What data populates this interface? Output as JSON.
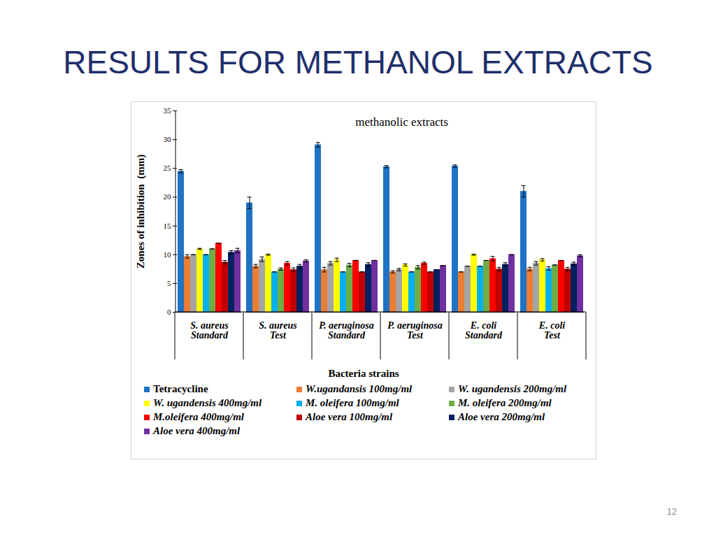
{
  "slide": {
    "title": "RESULTS  FOR METHANOL EXTRACTS",
    "page": "12"
  },
  "chart_data": {
    "type": "bar",
    "title": "methanolic extracts",
    "x_label": "Bacteria strains",
    "y_label": "Zones of inhibition  (mm)",
    "categories": [
      "S. aureus\nStandard",
      "S. aureus\nTest",
      "P. aeruginosa\nStandard",
      "P. aeruginosa\nTest",
      "E. coli\nStandard",
      "E. coli\nTest"
    ],
    "ylim": [
      0,
      35
    ],
    "yticks": [
      0,
      5,
      10,
      15,
      20,
      25,
      30,
      35
    ],
    "grid": false,
    "legend": "bottom",
    "series": [
      {
        "name": "Tetracycline",
        "color": "#1f72c4",
        "values": [
          24.5,
          19.0,
          29.1,
          25.3,
          25.4,
          21.0
        ],
        "errors": [
          0.3,
          1.0,
          0.4,
          0.2,
          0.2,
          1.0
        ]
      },
      {
        "name": "W.ugandansis 100mg/ml",
        "color": "#ed7d31",
        "values": [
          9.7,
          8.0,
          7.4,
          7.0,
          7.0,
          7.5
        ],
        "errors": [
          0.3,
          0.3,
          0.4,
          0.2,
          0.0,
          0.3
        ]
      },
      {
        "name": "W. ugandensis 200mg/ml",
        "color": "#a5a5a5",
        "values": [
          10.0,
          9.2,
          8.5,
          7.4,
          8.0,
          8.5
        ],
        "errors": [
          0.0,
          0.4,
          0.3,
          0.2,
          0.0,
          0.3
        ]
      },
      {
        "name": "W. ugandensis 400mg/ml",
        "color": "#ffff00",
        "values": [
          11.0,
          10.0,
          9.1,
          8.2,
          10.0,
          9.1
        ],
        "errors": [
          0.1,
          0.1,
          0.3,
          0.2,
          0.1,
          0.2
        ]
      },
      {
        "name": "M. oleifera 100mg/ml",
        "color": "#00b0f0",
        "values": [
          10.0,
          7.0,
          7.0,
          7.0,
          8.0,
          7.6
        ],
        "errors": [
          0.0,
          0.0,
          0.0,
          0.0,
          0.0,
          0.3
        ]
      },
      {
        "name": "M. oleifera 200mg/ml",
        "color": "#70ad47",
        "values": [
          11.0,
          7.5,
          8.2,
          7.8,
          9.0,
          8.2
        ],
        "errors": [
          0.0,
          0.2,
          0.3,
          0.3,
          0.0,
          0.0
        ]
      },
      {
        "name": "M.oleifera 400mg/ml",
        "color": "#ff0000",
        "values": [
          12.0,
          8.5,
          9.0,
          8.5,
          9.3,
          9.0
        ],
        "errors": [
          0.0,
          0.3,
          0.0,
          0.2,
          0.4,
          0.0
        ]
      },
      {
        "name": "Aloe vera 100mg/ml",
        "color": "#c00000",
        "values": [
          8.7,
          7.4,
          7.0,
          7.0,
          7.5,
          7.5
        ],
        "errors": [
          0.3,
          0.3,
          0.0,
          0.0,
          0.3,
          0.3
        ]
      },
      {
        "name": "Aloe vera 200mg/ml",
        "color": "#002060",
        "values": [
          10.4,
          8.0,
          8.3,
          7.4,
          8.3,
          8.4
        ],
        "errors": [
          0.3,
          0.3,
          0.3,
          0.0,
          0.3,
          0.3
        ]
      },
      {
        "name": "Aloe vera 400mg/ml",
        "color": "#7030a0",
        "values": [
          10.7,
          8.9,
          9.0,
          8.1,
          10.0,
          9.8
        ],
        "errors": [
          0.4,
          0.2,
          0.0,
          0.0,
          0.0,
          0.2
        ]
      }
    ]
  }
}
